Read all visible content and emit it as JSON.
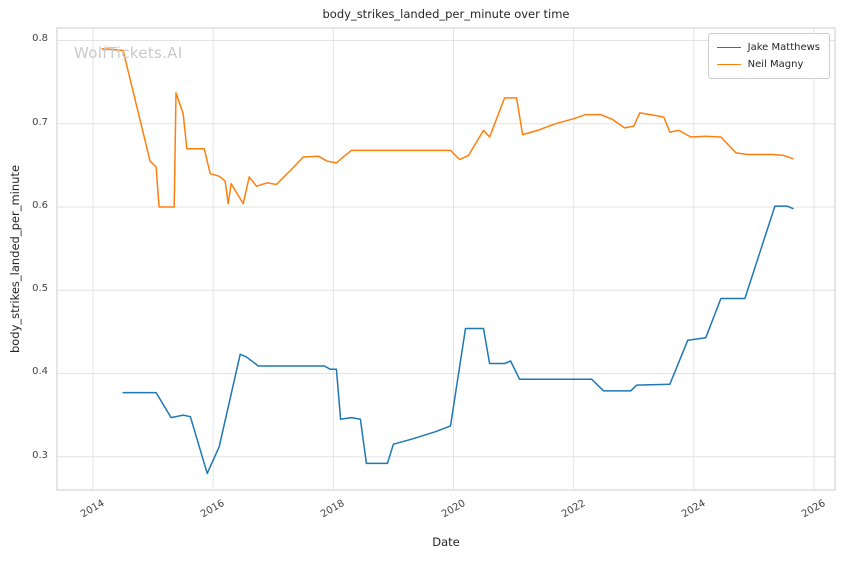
{
  "page": {
    "watermark": "WolfTickets.AI"
  },
  "chart_data": {
    "type": "line",
    "title": "body_strikes_landed_per_minute over time",
    "xlabel": "Date",
    "ylabel": "body_strikes_landed_per_minute",
    "xlim": [
      2013.4,
      2026.35
    ],
    "ylim": [
      0.26,
      0.815
    ],
    "x_ticks": [
      2014,
      2016,
      2018,
      2020,
      2022,
      2024,
      2026
    ],
    "y_ticks": [
      0.3,
      0.4,
      0.5,
      0.6,
      0.7,
      0.8
    ],
    "grid": true,
    "legend_position": "upper right",
    "series": [
      {
        "name": "Jake Matthews",
        "color": "#1f77b4",
        "points": [
          [
            2014.5,
            0.377
          ],
          [
            2015.05,
            0.377
          ],
          [
            2015.3,
            0.347
          ],
          [
            2015.5,
            0.35
          ],
          [
            2015.62,
            0.348
          ],
          [
            2015.9,
            0.28
          ],
          [
            2016.1,
            0.312
          ],
          [
            2016.45,
            0.423
          ],
          [
            2016.55,
            0.42
          ],
          [
            2016.75,
            0.409
          ],
          [
            2017.85,
            0.409
          ],
          [
            2017.95,
            0.405
          ],
          [
            2018.05,
            0.405
          ],
          [
            2018.12,
            0.345
          ],
          [
            2018.3,
            0.347
          ],
          [
            2018.45,
            0.345
          ],
          [
            2018.55,
            0.292
          ],
          [
            2018.9,
            0.292
          ],
          [
            2019.0,
            0.315
          ],
          [
            2019.3,
            0.321
          ],
          [
            2019.7,
            0.33
          ],
          [
            2019.95,
            0.337
          ],
          [
            2020.2,
            0.454
          ],
          [
            2020.5,
            0.454
          ],
          [
            2020.6,
            0.412
          ],
          [
            2020.85,
            0.412
          ],
          [
            2020.95,
            0.415
          ],
          [
            2021.1,
            0.393
          ],
          [
            2022.3,
            0.393
          ],
          [
            2022.5,
            0.379
          ],
          [
            2022.95,
            0.379
          ],
          [
            2023.05,
            0.386
          ],
          [
            2023.6,
            0.387
          ],
          [
            2023.9,
            0.44
          ],
          [
            2024.2,
            0.443
          ],
          [
            2024.45,
            0.49
          ],
          [
            2024.85,
            0.49
          ],
          [
            2025.35,
            0.601
          ],
          [
            2025.55,
            0.601
          ],
          [
            2025.65,
            0.598
          ]
        ]
      },
      {
        "name": "Neil Magny",
        "color": "#ff7f0e",
        "points": [
          [
            2014.15,
            0.79
          ],
          [
            2014.5,
            0.788
          ],
          [
            2014.95,
            0.655
          ],
          [
            2015.05,
            0.648
          ],
          [
            2015.1,
            0.6
          ],
          [
            2015.35,
            0.6
          ],
          [
            2015.38,
            0.737
          ],
          [
            2015.5,
            0.712
          ],
          [
            2015.56,
            0.67
          ],
          [
            2015.85,
            0.67
          ],
          [
            2015.95,
            0.64
          ],
          [
            2016.1,
            0.637
          ],
          [
            2016.2,
            0.631
          ],
          [
            2016.25,
            0.604
          ],
          [
            2016.3,
            0.628
          ],
          [
            2016.5,
            0.604
          ],
          [
            2016.6,
            0.636
          ],
          [
            2016.72,
            0.625
          ],
          [
            2016.9,
            0.629
          ],
          [
            2017.05,
            0.627
          ],
          [
            2017.3,
            0.645
          ],
          [
            2017.5,
            0.66
          ],
          [
            2017.75,
            0.661
          ],
          [
            2017.9,
            0.655
          ],
          [
            2018.05,
            0.653
          ],
          [
            2018.18,
            0.661
          ],
          [
            2018.3,
            0.668
          ],
          [
            2019.0,
            0.668
          ],
          [
            2019.95,
            0.668
          ],
          [
            2020.1,
            0.657
          ],
          [
            2020.25,
            0.662
          ],
          [
            2020.5,
            0.692
          ],
          [
            2020.6,
            0.684
          ],
          [
            2020.85,
            0.731
          ],
          [
            2021.05,
            0.731
          ],
          [
            2021.15,
            0.687
          ],
          [
            2021.4,
            0.692
          ],
          [
            2021.7,
            0.7
          ],
          [
            2022.0,
            0.706
          ],
          [
            2022.2,
            0.711
          ],
          [
            2022.45,
            0.711
          ],
          [
            2022.65,
            0.705
          ],
          [
            2022.85,
            0.695
          ],
          [
            2023.0,
            0.697
          ],
          [
            2023.1,
            0.713
          ],
          [
            2023.35,
            0.71
          ],
          [
            2023.5,
            0.708
          ],
          [
            2023.6,
            0.69
          ],
          [
            2023.75,
            0.692
          ],
          [
            2023.95,
            0.684
          ],
          [
            2024.2,
            0.685
          ],
          [
            2024.45,
            0.684
          ],
          [
            2024.7,
            0.665
          ],
          [
            2024.9,
            0.663
          ],
          [
            2025.3,
            0.663
          ],
          [
            2025.5,
            0.662
          ],
          [
            2025.65,
            0.658
          ]
        ]
      }
    ]
  }
}
